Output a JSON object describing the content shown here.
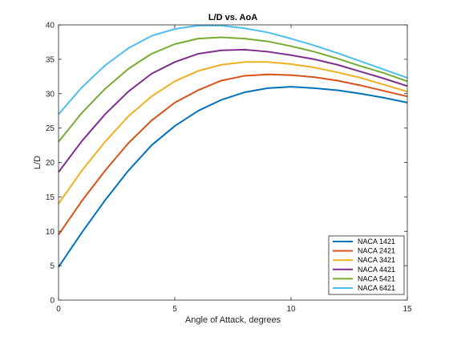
{
  "chart_data": {
    "type": "line",
    "title": "L/D vs. AoA",
    "xlabel": "Angle of Attack, degrees",
    "ylabel": "L/D",
    "xlim": [
      0,
      15
    ],
    "ylim": [
      0,
      40
    ],
    "xticks": [
      0,
      5,
      10,
      15
    ],
    "yticks": [
      0,
      5,
      10,
      15,
      20,
      25,
      30,
      35,
      40
    ],
    "grid": false,
    "legend_position": "bottom-right",
    "x": [
      0,
      1,
      2,
      3,
      4,
      5,
      6,
      7,
      8,
      9,
      10,
      11,
      12,
      13,
      14,
      15
    ],
    "series": [
      {
        "name": "NACA 1421",
        "color": "#0072BD",
        "values": [
          4.8,
          9.8,
          14.5,
          18.8,
          22.5,
          25.3,
          27.5,
          29.1,
          30.2,
          30.8,
          31.0,
          30.8,
          30.5,
          30.0,
          29.4,
          28.7
        ]
      },
      {
        "name": "NACA 2421",
        "color": "#D95319",
        "values": [
          9.5,
          14.4,
          18.8,
          22.8,
          26.1,
          28.7,
          30.5,
          31.9,
          32.6,
          32.8,
          32.7,
          32.4,
          31.9,
          31.2,
          30.4,
          29.6
        ]
      },
      {
        "name": "NACA 3421",
        "color": "#EDB120",
        "values": [
          14.0,
          18.8,
          23.0,
          26.7,
          29.6,
          31.8,
          33.3,
          34.2,
          34.6,
          34.6,
          34.3,
          33.8,
          33.1,
          32.3,
          31.3,
          30.3
        ]
      },
      {
        "name": "NACA 4421",
        "color": "#7E2F8E",
        "values": [
          18.6,
          23.1,
          27.0,
          30.3,
          32.9,
          34.6,
          35.8,
          36.3,
          36.4,
          36.1,
          35.6,
          35.0,
          34.2,
          33.2,
          32.2,
          31.1
        ]
      },
      {
        "name": "NACA 5421",
        "color": "#77AC30",
        "values": [
          23.0,
          27.2,
          30.7,
          33.6,
          35.8,
          37.2,
          38.0,
          38.2,
          38.0,
          37.6,
          36.9,
          36.1,
          35.1,
          34.0,
          33.0,
          31.8
        ]
      },
      {
        "name": "NACA 6421",
        "color": "#4DBEEE",
        "values": [
          27.0,
          30.9,
          34.1,
          36.6,
          38.4,
          39.4,
          39.9,
          39.9,
          39.5,
          38.9,
          38.0,
          37.0,
          35.9,
          34.7,
          33.5,
          32.3
        ]
      }
    ]
  }
}
